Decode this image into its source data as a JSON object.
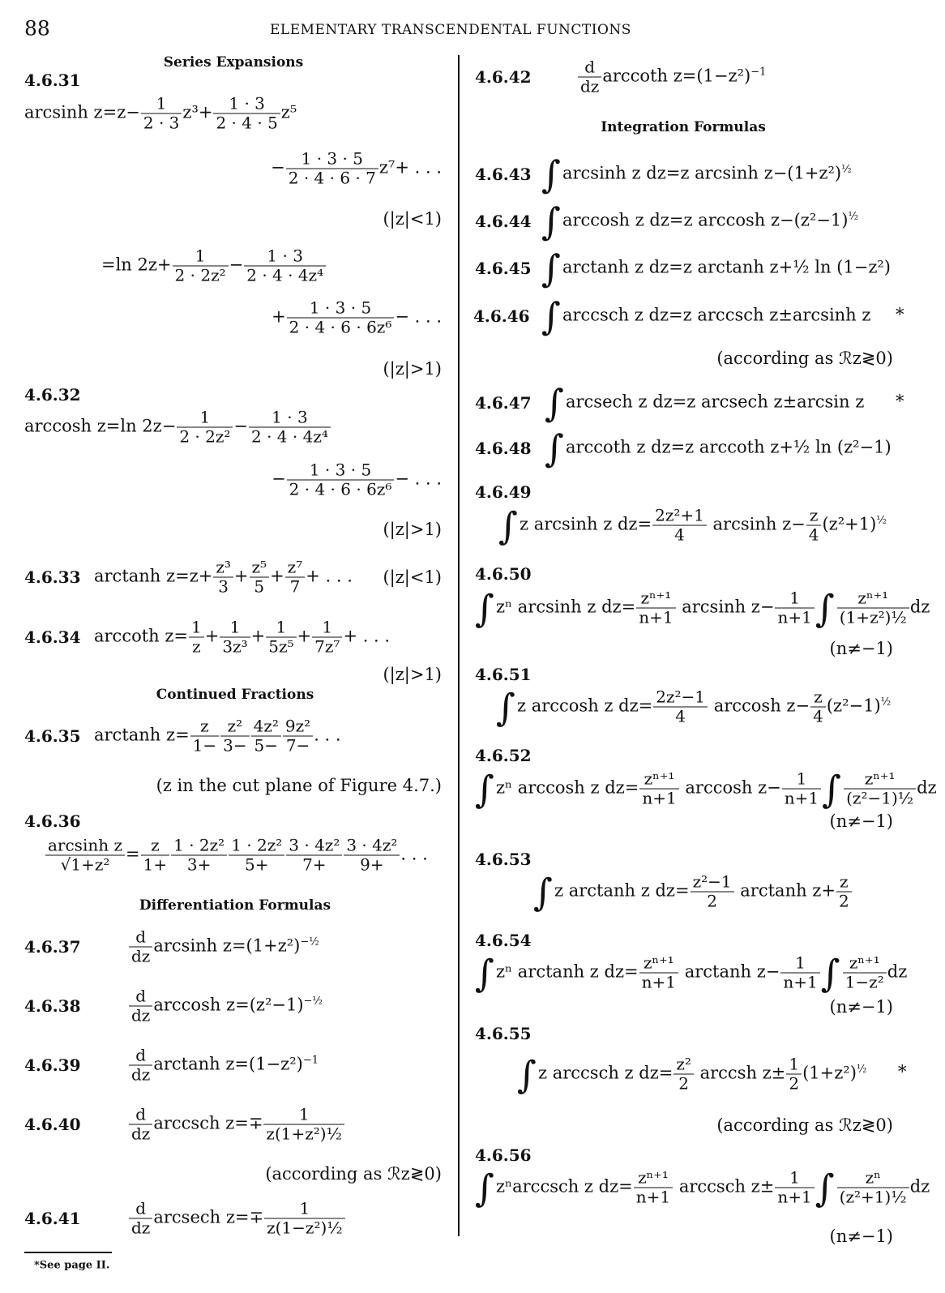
{
  "header": {
    "page_number": "88",
    "title": "ELEMENTARY TRANSCENDENTAL FUNCTIONS"
  },
  "headings": {
    "series": "Series Expansions",
    "continued": "Continued Fractions",
    "differentiation": "Differentiation Formulas",
    "integration": "Integration Formulas"
  },
  "labels": {
    "l31": "4.6.31",
    "l32": "4.6.32",
    "l33": "4.6.33",
    "l34": "4.6.34",
    "l35": "4.6.35",
    "l36": "4.6.36",
    "l37": "4.6.37",
    "l38": "4.6.38",
    "l39": "4.6.39",
    "l40": "4.6.40",
    "l41": "4.6.41",
    "l42": "4.6.42",
    "l43": "4.6.43",
    "l44": "4.6.44",
    "l45": "4.6.45",
    "l46": "4.6.46",
    "l47": "4.6.47",
    "l48": "4.6.48",
    "l49": "4.6.49",
    "l50": "4.6.50",
    "l51": "4.6.51",
    "l52": "4.6.52",
    "l53": "4.6.53",
    "l54": "4.6.54",
    "l55": "4.6.55",
    "l56": "4.6.56"
  },
  "conditions": {
    "abs_lt_1": "(|z|<1)",
    "abs_gt_1": "(|z|>1)",
    "cut_plane": "(z in the cut plane of Figure 4.7.)",
    "according": "(according as ℛz≷0)",
    "n_ne": "(n≠−1)",
    "star": "*"
  },
  "equations": {
    "e31a": [
      "arcsinh z=z−",
      {
        "f": [
          "1",
          "2 · 3"
        ]
      },
      "z³+",
      {
        "f": [
          "1 · 3",
          "2 · 4 · 5"
        ]
      },
      "z⁵"
    ],
    "e31b": [
      "−",
      {
        "f": [
          "1 · 3 · 5",
          "2 · 4 · 6 · 7"
        ]
      },
      "z⁷+ . . ."
    ],
    "e31c": [
      "=ln 2z+",
      {
        "f": [
          "1",
          "2 · 2z²"
        ]
      },
      "−",
      {
        "f": [
          "1 · 3",
          "2 · 4 · 4z⁴"
        ]
      }
    ],
    "e31d": [
      "+",
      {
        "f": [
          "1 · 3 · 5",
          "2 · 4 · 6 · 6z⁶"
        ]
      },
      "− . . ."
    ],
    "e32a": [
      "arccosh z=ln 2z−",
      {
        "f": [
          "1",
          "2 · 2z²"
        ]
      },
      "−",
      {
        "f": [
          "1 · 3",
          "2 · 4 · 4z⁴"
        ]
      }
    ],
    "e32b": [
      "−",
      {
        "f": [
          "1 · 3 · 5",
          "2 · 4 · 6 · 6z⁶"
        ]
      },
      "− . . ."
    ],
    "e33": [
      "arctanh z=z+",
      {
        "f": [
          "z³",
          "3"
        ]
      },
      "+",
      {
        "f": [
          "z⁵",
          "5"
        ]
      },
      "+",
      {
        "f": [
          "z⁷",
          "7"
        ]
      },
      "+ . . ."
    ],
    "e34": [
      "arccoth z=",
      {
        "f": [
          "1",
          "z"
        ]
      },
      "+",
      {
        "f": [
          "1",
          "3z³"
        ]
      },
      "+",
      {
        "f": [
          "1",
          "5z⁵"
        ]
      },
      "+",
      {
        "f": [
          "1",
          "7z⁷"
        ]
      },
      "+ . . ."
    ],
    "e35": [
      "arctanh z=",
      {
        "f": [
          "z",
          "1−"
        ]
      },
      {
        "f": [
          "z²",
          "3−"
        ]
      },
      {
        "f": [
          "4z²",
          "5−"
        ]
      },
      {
        "f": [
          "9z²",
          "7−"
        ]
      },
      ". . ."
    ],
    "e36": [
      {
        "f": [
          "arcsinh z",
          "√1+z²"
        ]
      },
      "=",
      {
        "f": [
          "z",
          "1+"
        ]
      },
      {
        "f": [
          "1 · 2z²",
          "3+"
        ]
      },
      {
        "f": [
          "1 · 2z²",
          "5+"
        ]
      },
      {
        "f": [
          "3 · 4z²",
          "7+"
        ]
      },
      {
        "f": [
          "3 · 4z²",
          "9+"
        ]
      },
      ". . ."
    ],
    "e37": [
      {
        "f": [
          "d",
          "dz"
        ]
      },
      "arcsinh z=(1+z²)",
      {
        "sup": "−½"
      }
    ],
    "e38": [
      {
        "f": [
          "d",
          "dz"
        ]
      },
      "arccosh z=(z²−1)",
      {
        "sup": "−½"
      }
    ],
    "e39": [
      {
        "f": [
          "d",
          "dz"
        ]
      },
      "arctanh z=(1−z²)",
      {
        "sup": "−1"
      }
    ],
    "e40": [
      {
        "f": [
          "d",
          "dz"
        ]
      },
      "arccsch z=∓",
      {
        "f": [
          "1",
          "z(1+z²)½"
        ]
      }
    ],
    "e41": [
      {
        "f": [
          "d",
          "dz"
        ]
      },
      "arcsech z=∓",
      {
        "f": [
          "1",
          "z(1−z²)½"
        ]
      }
    ],
    "e42": [
      {
        "f": [
          "d",
          "dz"
        ]
      },
      "arccoth z=(1−z²)",
      {
        "sup": "−1"
      }
    ],
    "e43": [
      {
        "int": "∫"
      },
      "arcsinh z dz=z arcsinh z−(1+z²)",
      {
        "sup": "½"
      }
    ],
    "e44": [
      {
        "int": "∫"
      },
      "arccosh z dz=z arccosh z−(z²−1)",
      {
        "sup": "½"
      }
    ],
    "e45": [
      {
        "int": "∫"
      },
      "arctanh z dz=z arctanh z+½ ln (1−z²)"
    ],
    "e46": [
      {
        "int": "∫"
      },
      "arccsch z dz=z arccsch z±arcsinh z"
    ],
    "e47": [
      {
        "int": "∫"
      },
      "arcsech z dz=z arcsech z±arcsin z"
    ],
    "e48": [
      {
        "int": "∫"
      },
      "arccoth z dz=z arccoth z+½ ln (z²−1)"
    ],
    "e49": [
      {
        "int": "∫"
      },
      "z arcsinh z dz=",
      {
        "f": [
          "2z²+1",
          "4"
        ]
      },
      " arcsinh z−",
      {
        "f": [
          "z",
          "4"
        ]
      },
      "(z²+1)",
      {
        "sup": "½"
      }
    ],
    "e50": [
      {
        "int": "∫"
      },
      "zⁿ arcsinh z dz=",
      {
        "f": [
          "zⁿ⁺¹",
          "n+1"
        ]
      },
      " arcsinh z−",
      {
        "f": [
          "1",
          "n+1"
        ]
      },
      {
        "int": "∫"
      },
      {
        "f": [
          "zⁿ⁺¹",
          "(1+z²)½"
        ]
      },
      "dz"
    ],
    "e51": [
      {
        "int": "∫"
      },
      "z arccosh z dz=",
      {
        "f": [
          "2z²−1",
          "4"
        ]
      },
      " arccosh z−",
      {
        "f": [
          "z",
          "4"
        ]
      },
      "(z²−1)",
      {
        "sup": "½"
      }
    ],
    "e52": [
      {
        "int": "∫"
      },
      "zⁿ arccosh z dz=",
      {
        "f": [
          "zⁿ⁺¹",
          "n+1"
        ]
      },
      " arccosh z−",
      {
        "f": [
          "1",
          "n+1"
        ]
      },
      {
        "int": "∫"
      },
      {
        "f": [
          "zⁿ⁺¹",
          "(z²−1)½"
        ]
      },
      "dz"
    ],
    "e53": [
      {
        "int": "∫"
      },
      "z arctanh z dz=",
      {
        "f": [
          "z²−1",
          "2"
        ]
      },
      " arctanh z+",
      {
        "f": [
          "z",
          "2"
        ]
      }
    ],
    "e54": [
      {
        "int": "∫"
      },
      "zⁿ arctanh z dz=",
      {
        "f": [
          "zⁿ⁺¹",
          "n+1"
        ]
      },
      " arctanh z−",
      {
        "f": [
          "1",
          "n+1"
        ]
      },
      {
        "int": "∫"
      },
      {
        "f": [
          "zⁿ⁺¹",
          "1−z²"
        ]
      },
      "dz"
    ],
    "e55": [
      {
        "int": "∫"
      },
      "z arccsch z dz=",
      {
        "f": [
          "z²",
          "2"
        ]
      },
      " arccsh z±",
      {
        "f": [
          "1",
          "2"
        ]
      },
      "(1+z²)",
      {
        "sup": "½"
      }
    ],
    "e56": [
      {
        "int": "∫"
      },
      "zⁿarccsch z dz=",
      {
        "f": [
          "zⁿ⁺¹",
          "n+1"
        ]
      },
      " arccsch z±",
      {
        "f": [
          "1",
          "n+1"
        ]
      },
      {
        "int": "∫"
      },
      {
        "f": [
          "zⁿ",
          "(z²+1)½"
        ]
      },
      "dz"
    ]
  },
  "footnote": "*See page II."
}
